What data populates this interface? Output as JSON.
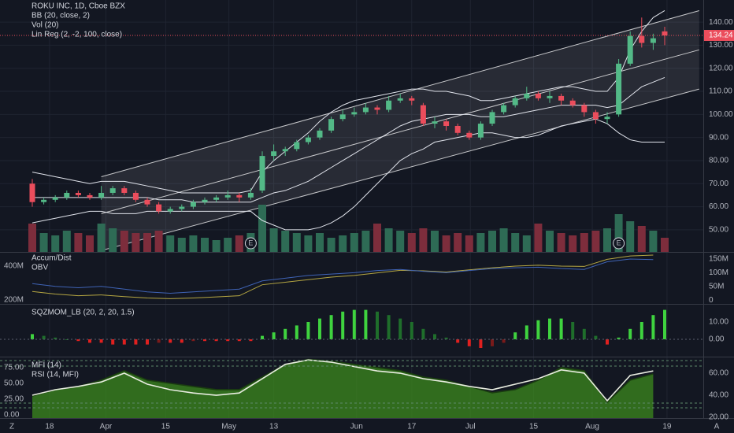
{
  "ui": {
    "left_button": "Z",
    "right_button": "A"
  },
  "chart_data": [
    {
      "type": "candlestick",
      "title": "ROKU INC, 1D, Cboe BZX",
      "indicators": [
        "BB (20, close, 2)",
        "Vol (20)",
        "Lin Reg (2, -2, 100, close)"
      ],
      "up_color": "#53b987",
      "down_color": "#eb4d5c",
      "open": [
        70,
        62,
        63,
        64,
        66,
        65,
        64,
        66,
        68,
        66,
        63,
        61,
        58,
        59,
        60,
        62,
        63,
        64,
        65,
        64,
        67,
        82,
        84,
        85,
        88,
        90,
        93,
        98,
        100,
        101,
        103,
        102,
        106,
        107,
        104,
        96,
        97,
        95,
        92,
        90,
        96,
        101,
        104,
        107,
        109,
        107,
        108,
        106,
        104,
        101,
        98,
        100,
        122,
        134,
        131,
        136
      ],
      "high": [
        72,
        64,
        65,
        67,
        67,
        66,
        69,
        69,
        69,
        67,
        64,
        62,
        60,
        61,
        63,
        64,
        65,
        67,
        66,
        68,
        84,
        87,
        86,
        89,
        91,
        94,
        99,
        102,
        103,
        105,
        104,
        108,
        109,
        108,
        105,
        99,
        98,
        96,
        93,
        97,
        102,
        105,
        108,
        112,
        110,
        110,
        109,
        107,
        105,
        102,
        101,
        124,
        136,
        142,
        135,
        138
      ],
      "low": [
        60,
        61,
        62,
        63,
        64,
        63,
        63,
        65,
        65,
        62,
        60,
        57,
        57,
        58,
        59,
        61,
        62,
        63,
        62,
        63,
        66,
        80,
        82,
        84,
        87,
        89,
        92,
        97,
        99,
        100,
        100,
        101,
        105,
        104,
        95,
        94,
        93,
        91,
        89,
        89,
        95,
        100,
        103,
        106,
        106,
        105,
        104,
        103,
        99,
        96,
        96,
        99,
        121,
        129,
        128,
        130
      ],
      "close": [
        62,
        63,
        64,
        66,
        65,
        64,
        66,
        68,
        66,
        63,
        61,
        58,
        59,
        60,
        62,
        63,
        64,
        65,
        64,
        66,
        82,
        84,
        85,
        88,
        90,
        93,
        98,
        100,
        101,
        103,
        102,
        106,
        107,
        106,
        96,
        97,
        95,
        92,
        90,
        96,
        101,
        104,
        107,
        109,
        107,
        108,
        106,
        104,
        101,
        98,
        99,
        122,
        134,
        131,
        133,
        134.24
      ],
      "last_price": 134.24,
      "ylim": [
        40.4,
        149.6
      ],
      "yticks": [
        {
          "value": 140,
          "label": "140.00"
        },
        {
          "value": 130,
          "label": "130.00"
        },
        {
          "value": 120,
          "label": "120.00"
        },
        {
          "value": 110,
          "label": "110.00"
        },
        {
          "value": 100,
          "label": "100.00"
        },
        {
          "value": 90,
          "label": "90.00"
        },
        {
          "value": 80,
          "label": "80.00"
        },
        {
          "value": 70,
          "label": "70.00"
        },
        {
          "value": 60,
          "label": "60.00"
        },
        {
          "value": 50,
          "label": "50.00"
        }
      ],
      "xticks": [
        {
          "value": 1.5,
          "label": "18"
        },
        {
          "value": 6.4,
          "label": "Apr"
        },
        {
          "value": 11.6,
          "label": "15"
        },
        {
          "value": 17.1,
          "label": "May"
        },
        {
          "value": 21,
          "label": "13"
        },
        {
          "value": 28.2,
          "label": "Jun"
        },
        {
          "value": 33,
          "label": "17"
        },
        {
          "value": 38.1,
          "label": "Jul"
        },
        {
          "value": 43.6,
          "label": "15"
        },
        {
          "value": 48.7,
          "label": "Aug"
        },
        {
          "value": 55.2,
          "label": "19"
        }
      ],
      "volume": {
        "ylim": [
          0,
          40
        ],
        "up_color": "#2e6b55",
        "down_color": "#7d2d3c",
        "values": [
          12,
          8,
          7,
          9,
          8,
          7,
          12,
          10,
          9,
          8,
          8,
          9,
          7,
          6,
          7,
          6,
          5,
          6,
          7,
          8,
          20,
          10,
          9,
          8,
          7,
          8,
          6,
          7,
          8,
          9,
          12,
          10,
          9,
          8,
          10,
          9,
          7,
          8,
          7,
          8,
          9,
          10,
          8,
          7,
          12,
          9,
          8,
          7,
          8,
          9,
          10,
          16,
          13,
          11,
          9,
          6
        ]
      },
      "bollinger": {
        "color": "#e0e3eb",
        "upper": [
          75,
          74,
          73,
          72,
          71,
          70,
          71,
          71,
          71,
          70,
          69,
          68,
          67,
          66,
          66,
          66,
          66,
          66,
          66,
          67,
          75,
          80,
          84,
          88,
          92,
          97,
          101,
          104,
          106,
          107,
          108,
          109,
          110,
          111,
          111,
          110,
          110,
          109,
          108,
          106,
          106,
          107,
          108,
          109,
          110,
          111,
          112,
          112,
          111,
          110,
          110,
          116,
          128,
          136,
          142,
          145
        ],
        "basis": [
          64,
          64,
          64,
          64,
          64,
          64,
          64,
          64,
          64,
          64,
          64,
          63,
          63,
          63,
          62,
          62,
          62,
          62,
          62,
          62,
          64,
          66,
          67,
          69,
          71,
          74,
          77,
          80,
          83,
          86,
          89,
          92,
          95,
          97,
          98,
          99,
          100,
          100,
          100,
          99,
          99,
          99,
          100,
          101,
          102,
          103,
          104,
          104,
          104,
          104,
          103,
          104,
          108,
          112,
          114,
          116
        ],
        "lower": [
          53,
          54,
          55,
          56,
          57,
          58,
          58,
          57,
          57,
          57,
          58,
          58,
          58,
          58,
          58,
          58,
          58,
          58,
          58,
          58,
          54,
          52,
          50,
          50,
          50,
          51,
          53,
          56,
          60,
          65,
          70,
          75,
          80,
          83,
          85,
          88,
          89,
          90,
          91,
          92,
          92,
          91,
          90,
          90,
          91,
          93,
          95,
          96,
          97,
          98,
          96,
          92,
          89,
          88,
          88,
          88
        ]
      },
      "linreg": {
        "x": [
          6,
          58
        ],
        "upper": [
          73,
          145
        ],
        "middle": [
          57,
          128
        ],
        "lower": [
          41,
          111
        ]
      },
      "earnings": [
        {
          "x": 19,
          "label": "E"
        },
        {
          "x": 51,
          "label": "E"
        }
      ]
    },
    {
      "type": "line",
      "x": [
        0,
        2,
        4,
        6,
        8,
        10,
        12,
        14,
        16,
        18,
        20,
        22,
        24,
        26,
        28,
        30,
        32,
        34,
        36,
        38,
        40,
        42,
        44,
        46,
        48,
        50,
        52,
        54
      ],
      "series": [
        {
          "name": "Accum/Dist",
          "color": "#b5a642",
          "values": [
            250,
            235,
            225,
            230,
            220,
            212,
            208,
            212,
            218,
            225,
            290,
            305,
            320,
            335,
            345,
            360,
            375,
            372,
            365,
            378,
            390,
            400,
            405,
            400,
            398,
            440,
            460,
            465
          ]
        },
        {
          "name": "OBV",
          "color": "#3f63b5",
          "axis": "y2",
          "values": [
            60,
            50,
            45,
            50,
            40,
            30,
            25,
            30,
            35,
            40,
            70,
            80,
            90,
            95,
            100,
            108,
            112,
            105,
            100,
            108,
            115,
            118,
            120,
            115,
            112,
            140,
            150,
            148
          ]
        }
      ],
      "ylim": [
        177,
        479
      ],
      "yticks": [
        {
          "value": 400,
          "label": "400M"
        },
        {
          "value": 200,
          "label": "200M"
        }
      ],
      "y2lim": [
        -14,
        173
      ],
      "y2ticks": [
        {
          "value": 150,
          "label": "150M"
        },
        {
          "value": 100,
          "label": "100M"
        },
        {
          "value": 50,
          "label": "50M"
        },
        0
      ]
    },
    {
      "type": "bar",
      "title": "SQZMOM_LB (20, 2, 20, 1.5)",
      "colors": {
        "pos_up": "#3fd33f",
        "pos_down": "#1f6e2b",
        "neg_down": "#e0201f",
        "neg_up": "#7a1a1a"
      },
      "values": [
        3,
        2,
        1,
        0,
        -1,
        -2,
        -2,
        -3,
        -3,
        -3,
        -3,
        -2,
        -2,
        -2,
        -1,
        -1,
        -1,
        -1,
        -1,
        -1,
        2,
        4,
        6,
        8,
        10,
        12,
        14,
        16,
        17,
        17,
        16,
        14,
        12,
        10,
        6,
        3,
        1,
        -2,
        -4,
        -5,
        -4,
        -2,
        4,
        8,
        11,
        12,
        12,
        10,
        6,
        2,
        -3,
        1,
        6,
        10,
        14,
        17
      ],
      "ylim": [
        -10,
        20
      ],
      "yticks": [
        {
          "value": 10,
          "label": "10.00"
        },
        {
          "value": 0,
          "label": "0.00"
        }
      ]
    },
    {
      "type": "area",
      "x": [
        0,
        2,
        4,
        6,
        8,
        10,
        12,
        14,
        16,
        18,
        20,
        22,
        24,
        26,
        28,
        30,
        32,
        34,
        36,
        38,
        40,
        42,
        44,
        46,
        48,
        50,
        52,
        54
      ],
      "series": [
        {
          "name": "MFI (14)",
          "color": "#3c8a1e",
          "values": [
            30,
            40,
            45,
            55,
            70,
            55,
            50,
            45,
            40,
            40,
            60,
            80,
            88,
            85,
            80,
            75,
            70,
            60,
            55,
            45,
            35,
            40,
            55,
            75,
            70,
            20,
            55,
            65
          ]
        },
        {
          "name": "RSI (14, MFI)",
          "color": "#e8ece0",
          "axis": "y2",
          "values": [
            40,
            45,
            48,
            52,
            60,
            50,
            45,
            42,
            40,
            42,
            55,
            68,
            72,
            70,
            66,
            62,
            60,
            55,
            52,
            48,
            45,
            50,
            55,
            63,
            60,
            35,
            58,
            62
          ]
        }
      ],
      "ylim": [
        -5,
        91
      ],
      "yticks": [
        {
          "value": 75,
          "label": "75.00"
        },
        {
          "value": 50,
          "label": "50.00"
        },
        {
          "value": 25,
          "label": "25.00"
        },
        {
          "value": 0,
          "label": "0.00"
        }
      ],
      "y2lim": [
        19.3,
        74.3
      ],
      "y2ticks": [
        {
          "value": 60,
          "label": "60.00"
        },
        {
          "value": 40,
          "label": "40.00"
        },
        {
          "value": 20,
          "label": "20.00"
        }
      ]
    }
  ]
}
